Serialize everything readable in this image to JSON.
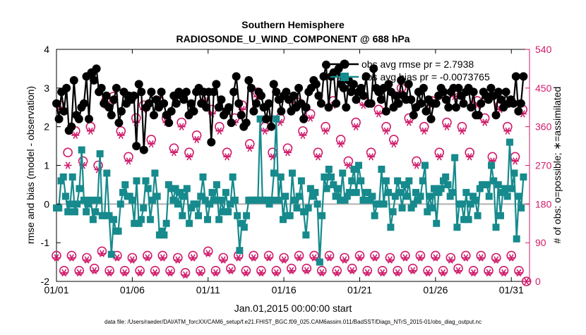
{
  "colors": {
    "rmse": "#000000",
    "bias": "#168a8c",
    "obs_count": "#d01c6b",
    "zero_line": "#b0b0b0",
    "axis": "#000000"
  },
  "chart_data": {
    "type": "line",
    "title": "Southern Hemisphere",
    "subtitle": "RADIOSONDE_U_WIND_COMPONENT @ 688 hPa",
    "xlabel": "Jan.01,2015 00:00:00 start",
    "ylabel": "rmse and bias (model - observation)",
    "ylabel_right": "# of obs: o=possible; ∗=assimilated",
    "footnote": "data file: /Users/raeder/DAI/ATM_forcXX/CAM6_setup/f.e21.FHIST_BGC.f09_025.CAM6assim.011/BadSST/Diags_NTrS_2015-01/obs_diag_output.nc",
    "x_unit": "day of January 2015",
    "xlim": [
      1,
      32.2
    ],
    "ylim": [
      -2,
      4
    ],
    "ylim_right": [
      0,
      540
    ],
    "x_ticks": [
      1,
      6,
      11,
      16,
      21,
      26,
      31
    ],
    "x_tick_labels": [
      "01/01",
      "01/06",
      "01/11",
      "01/16",
      "01/21",
      "01/26",
      "01/31"
    ],
    "y_ticks": [
      -2,
      -1,
      0,
      1,
      2,
      3,
      4
    ],
    "y_tick_labels": [
      "-2",
      "-1",
      "0",
      "1",
      "2",
      "3",
      "4"
    ],
    "y_right_ticks": [
      0,
      90,
      180,
      270,
      360,
      450,
      540
    ],
    "y_right_tick_labels": [
      "0",
      "90",
      "180",
      "270",
      "360",
      "450",
      "540"
    ],
    "grid": false,
    "legend_position": "top-right",
    "legend": [
      "obs avg rmse pr = 2.7938",
      "obs avg bias pr = -0.0073765"
    ],
    "series": [
      {
        "name": "obs avg rmse pr = 2.7938",
        "axis": "left",
        "marker": "filled circle",
        "values": [
          2.6,
          2.2,
          2.9,
          2.4,
          3.0,
          1.9,
          2.0,
          3.2,
          2.3,
          2.2,
          2.5,
          2.6,
          3.3,
          2.2,
          3.4,
          3.2,
          3.5,
          2.9,
          3.0,
          2.6,
          2.8,
          2.5,
          2.3,
          2.7,
          3.0,
          2.1,
          2.4,
          2.9,
          2.6,
          2.8,
          2.7,
          2.8,
          1.5,
          3.1,
          2.9,
          1.4,
          2.5,
          2.6,
          2.9,
          2.3,
          2.7,
          2.5,
          2.9,
          2.6,
          2.3,
          2.1,
          2.4,
          2.8,
          2.6,
          2.9,
          2.8,
          2.7,
          2.9,
          2.3,
          2.6,
          2.4,
          2.9,
          3.0,
          2.6,
          2.9,
          2.5,
          2.9,
          1.6,
          2.9,
          3.1,
          2.5,
          2.7,
          2.3,
          2.4,
          2.5,
          2.1,
          2.9,
          3.3,
          2.6,
          2.3,
          2.0,
          2.1,
          3.2,
          3.0,
          2.4,
          2.6,
          2.9,
          2.8,
          2.5,
          2.2,
          2.6,
          2.0,
          3.1,
          2.9,
          2.7,
          2.4,
          2.8,
          2.9,
          2.7,
          2.4,
          2.8,
          2.5,
          3.0,
          2.6,
          2.2,
          2.5,
          2.9,
          3.0,
          3.2,
          3.1,
          2.8,
          2.6,
          3.3,
          3.6,
          2.5,
          3.3,
          3.4,
          2.6,
          3.5,
          3.1,
          3.0,
          2.5,
          3.2,
          2.9,
          3.1,
          2.7,
          2.9,
          3.0,
          2.8,
          3.3,
          2.6,
          2.6,
          3.5,
          3.0,
          2.9,
          2.7,
          3.0,
          2.4,
          3.1,
          2.9,
          2.5,
          2.8,
          2.6,
          3.2,
          2.8,
          2.7,
          3.1,
          2.7,
          2.3,
          2.5,
          2.9,
          2.6,
          3.0,
          2.4,
          2.7,
          2.2,
          2.6,
          2.6,
          2.8,
          3.0,
          2.9,
          2.7,
          2.5,
          2.9,
          3.0,
          2.5,
          3.0,
          2.8,
          2.6,
          2.9,
          3.0,
          2.5,
          2.9,
          2.3,
          2.3,
          2.6,
          2.9,
          2.8,
          2.7,
          3.0,
          2.8,
          2.3,
          2.9,
          2.7,
          2.5,
          2.9,
          2.6,
          2.7,
          2.6,
          3.3,
          2.4,
          2.6,
          3.3
        ]
      },
      {
        "name": "obs avg bias pr = -0.0073765",
        "axis": "left",
        "marker": "filled square",
        "values": [
          -0.1,
          -0.1,
          0.6,
          0.7,
          0.2,
          -0.2,
          0.0,
          0.7,
          -0.2,
          0.0,
          0.4,
          1.4,
          0.1,
          -0.2,
          0.0,
          0.1,
          -0.4,
          -0.2,
          0.1,
          1.3,
          -0.3,
          -0.3,
          0.8,
          -0.3,
          -1.3,
          -0.4,
          -0.7,
          -0.7,
          0.0,
          0.3,
          0.5,
          0.2,
          0.2,
          0.1,
          -0.5,
          0.6,
          -0.5,
          -0.4,
          -0.1,
          0.6,
          0.4,
          -0.4,
          0.1,
          0.8,
          0.2,
          -0.8,
          -0.7,
          -0.8,
          -0.5,
          0.5,
          0.4,
          0.1,
          0.4,
          0.0,
          0.3,
          -0.3,
          0.2,
          0.4,
          -0.5,
          -0.1,
          0.0,
          0.0,
          -0.3,
          0.2,
          0.7,
          0.1,
          -0.4,
          0.0,
          0.3,
          0.1,
          0.5,
          -0.4,
          0.1,
          -0.2,
          0.3,
          -0.2,
          0.0,
          0.7,
          0.1,
          -0.3,
          -1.2,
          -0.5,
          -0.6,
          -0.3,
          0.1,
          0.1,
          0.1,
          0.1,
          0.1,
          2.2,
          0.1,
          0.1,
          0.1,
          0.0,
          0.1,
          0.8,
          2.2,
          0.1,
          0.7,
          -0.4,
          0.2,
          -0.3,
          -0.3,
          0.8,
          0.1,
          -0.1,
          0.2,
          0.6,
          -0.2,
          -0.8,
          -0.1,
          0.4,
          0.2,
          0.3,
          0.0,
          -1.5,
          -0.3,
          0.7,
          0.4,
          0.9,
          0.7,
          0.5,
          0.2,
          0.4,
          0.1,
          0.8,
          0.1,
          0.2,
          0.3,
          0.6,
          0.9,
          0.3,
          1.0,
          0.6,
          0.1,
          0.3,
          0.3,
          0.1,
          0.2,
          -0.3,
          0.0,
          0.0,
          0.9,
          0.0,
          0.6,
          0.3,
          -0.6,
          -0.2,
          0.2,
          0.6,
          0.3,
          -0.1,
          0.5,
          0.2,
          0.6,
          -0.1,
          0.0,
          0.3,
          0.1,
          0.2,
          0.6,
          1.0,
          -0.2,
          0.2,
          -0.1,
          0.4,
          -0.5,
          0.3,
          0.4,
          0.6,
          0.7,
          0.5,
          0.2,
          0.3,
          1.2,
          -0.6,
          0.0,
          0.0,
          -0.4,
          0.3,
          -0.4,
          0.0,
          0.2,
          0.1,
          -0.3,
          0.4,
          0.5,
          0.5,
          0.5,
          0.2,
          1.0,
          0.6,
          -0.6,
          0.5,
          -0.3,
          0.3,
          0.4,
          0.2,
          1.6,
          0.4,
          0.8,
          -0.9,
          0.2,
          -0.1,
          0.7
        ]
      }
    ],
    "obs_counts": {
      "axis": "right",
      "possible_marker": "open circle",
      "assimilated_marker": "asterisk",
      "times_00Z": [
        1.0,
        2.0,
        3.0,
        4.0,
        5.0,
        6.0,
        7.0,
        8.0,
        9.0,
        10.0,
        11.0,
        12.0,
        13.0,
        14.0,
        15.0,
        16.0,
        17.0,
        18.0,
        19.0,
        20.0,
        21.0,
        22.0,
        23.0,
        24.0,
        25.0,
        26.0,
        27.0,
        28.0,
        29.0,
        30.0,
        31.0,
        32.0
      ],
      "possible_00Z": [
        60,
        60,
        55,
        70,
        60,
        55,
        60,
        60,
        55,
        60,
        70,
        55,
        60,
        60,
        60,
        55,
        60,
        60,
        60,
        55,
        60,
        60,
        55,
        60,
        60,
        60,
        55,
        60,
        60,
        55,
        60,
        0
      ],
      "assimilated_00Z": [
        55,
        55,
        50,
        65,
        55,
        50,
        55,
        55,
        50,
        55,
        65,
        50,
        55,
        55,
        55,
        50,
        55,
        55,
        55,
        50,
        55,
        55,
        50,
        55,
        55,
        55,
        50,
        55,
        55,
        50,
        55,
        0
      ],
      "times_12Z": [
        1.5,
        2.5,
        3.5,
        4.5,
        5.5,
        6.5,
        7.5,
        8.5,
        9.5,
        10.5,
        11.5,
        12.5,
        13.5,
        14.5,
        15.5,
        16.5,
        17.5,
        18.5,
        19.5,
        20.5,
        21.5,
        22.5,
        23.5,
        24.5,
        25.5,
        26.5,
        27.5,
        28.5,
        29.5,
        30.5,
        31.5
      ],
      "possible_12Z": [
        25,
        25,
        30,
        25,
        25,
        25,
        25,
        25,
        20,
        25,
        25,
        30,
        25,
        25,
        25,
        30,
        30,
        25,
        25,
        30,
        25,
        25,
        25,
        30,
        25,
        25,
        30,
        25,
        25,
        25,
        25
      ],
      "assimilated_12Z": [
        20,
        20,
        25,
        20,
        20,
        20,
        20,
        20,
        15,
        20,
        20,
        25,
        20,
        20,
        20,
        25,
        25,
        20,
        20,
        25,
        20,
        20,
        20,
        25,
        20,
        20,
        25,
        20,
        20,
        20,
        20
      ],
      "times_6h": [
        1.25,
        1.75,
        2.25,
        2.75,
        3.25,
        3.75,
        4.25,
        4.75,
        5.25,
        5.75,
        6.25,
        6.75,
        7.25,
        7.75,
        8.25,
        8.75,
        9.25,
        9.75,
        10.25,
        10.75,
        11.25,
        11.75,
        12.25,
        12.75,
        13.25,
        13.75,
        14.25,
        14.75,
        15.25,
        15.75,
        16.25,
        16.75,
        17.25,
        17.75,
        18.25,
        18.75,
        19.25,
        19.75,
        20.25,
        20.75,
        21.25,
        21.75,
        22.25,
        22.75,
        23.25,
        23.75,
        24.25,
        24.75,
        25.25,
        25.75,
        26.25,
        26.75,
        27.25,
        27.75,
        28.25,
        28.75,
        29.25,
        29.75,
        30.25,
        30.75,
        31.25,
        31.75
      ],
      "possible_6h": [
        410,
        300,
        350,
        280,
        360,
        270,
        420,
        430,
        350,
        290,
        380,
        410,
        330,
        420,
        380,
        310,
        370,
        300,
        340,
        430,
        400,
        360,
        300,
        380,
        410,
        320,
        440,
        360,
        300,
        380,
        310,
        420,
        350,
        390,
        300,
        360,
        420,
        330,
        280,
        370,
        420,
        300,
        400,
        360,
        330,
        450,
        380,
        280,
        360,
        420,
        300,
        370,
        440,
        360,
        300,
        420,
        380,
        290,
        410,
        360,
        290,
        400
      ],
      "assimilated_6h": [
        400,
        270,
        340,
        270,
        350,
        260,
        410,
        420,
        340,
        280,
        370,
        400,
        320,
        410,
        370,
        300,
        360,
        290,
        330,
        420,
        390,
        350,
        290,
        370,
        400,
        310,
        430,
        350,
        290,
        370,
        300,
        410,
        340,
        380,
        290,
        350,
        410,
        320,
        270,
        360,
        410,
        290,
        390,
        350,
        320,
        440,
        370,
        270,
        350,
        410,
        290,
        360,
        430,
        350,
        290,
        410,
        370,
        280,
        400,
        350,
        280,
        390
      ]
    }
  }
}
